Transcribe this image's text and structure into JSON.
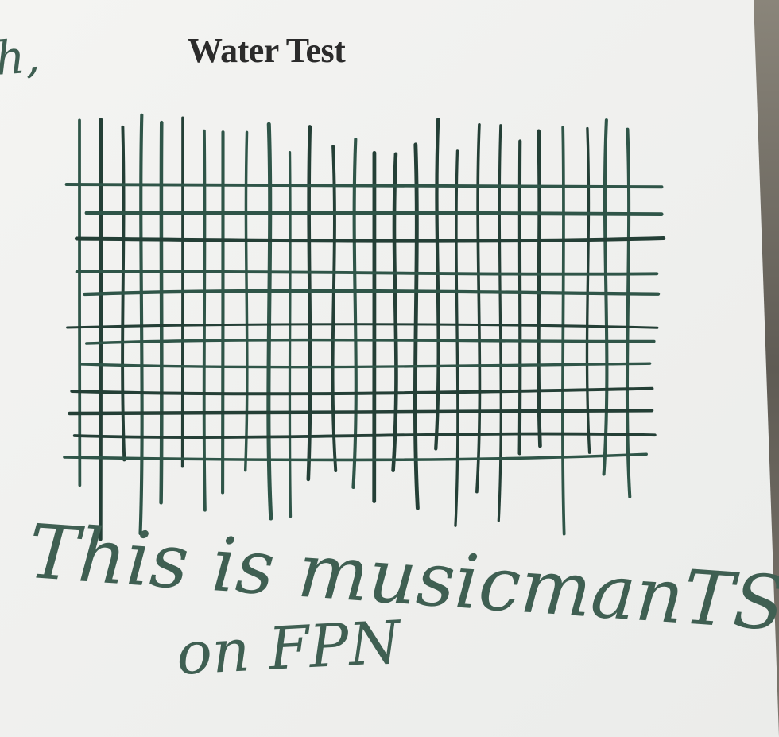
{
  "card": {
    "title": "Water Test",
    "handwriting_top": "h,",
    "handwriting_line1": "This is musicmanTS",
    "handwriting_line2": "on FPN"
  },
  "colors": {
    "paper": "#f6f6f4",
    "ink": "#2f5548",
    "ink_dark": "#243f36",
    "printed_text": "#2b2b2b",
    "stone": "#6e6a62"
  },
  "icons": [
    "ink-grid"
  ]
}
